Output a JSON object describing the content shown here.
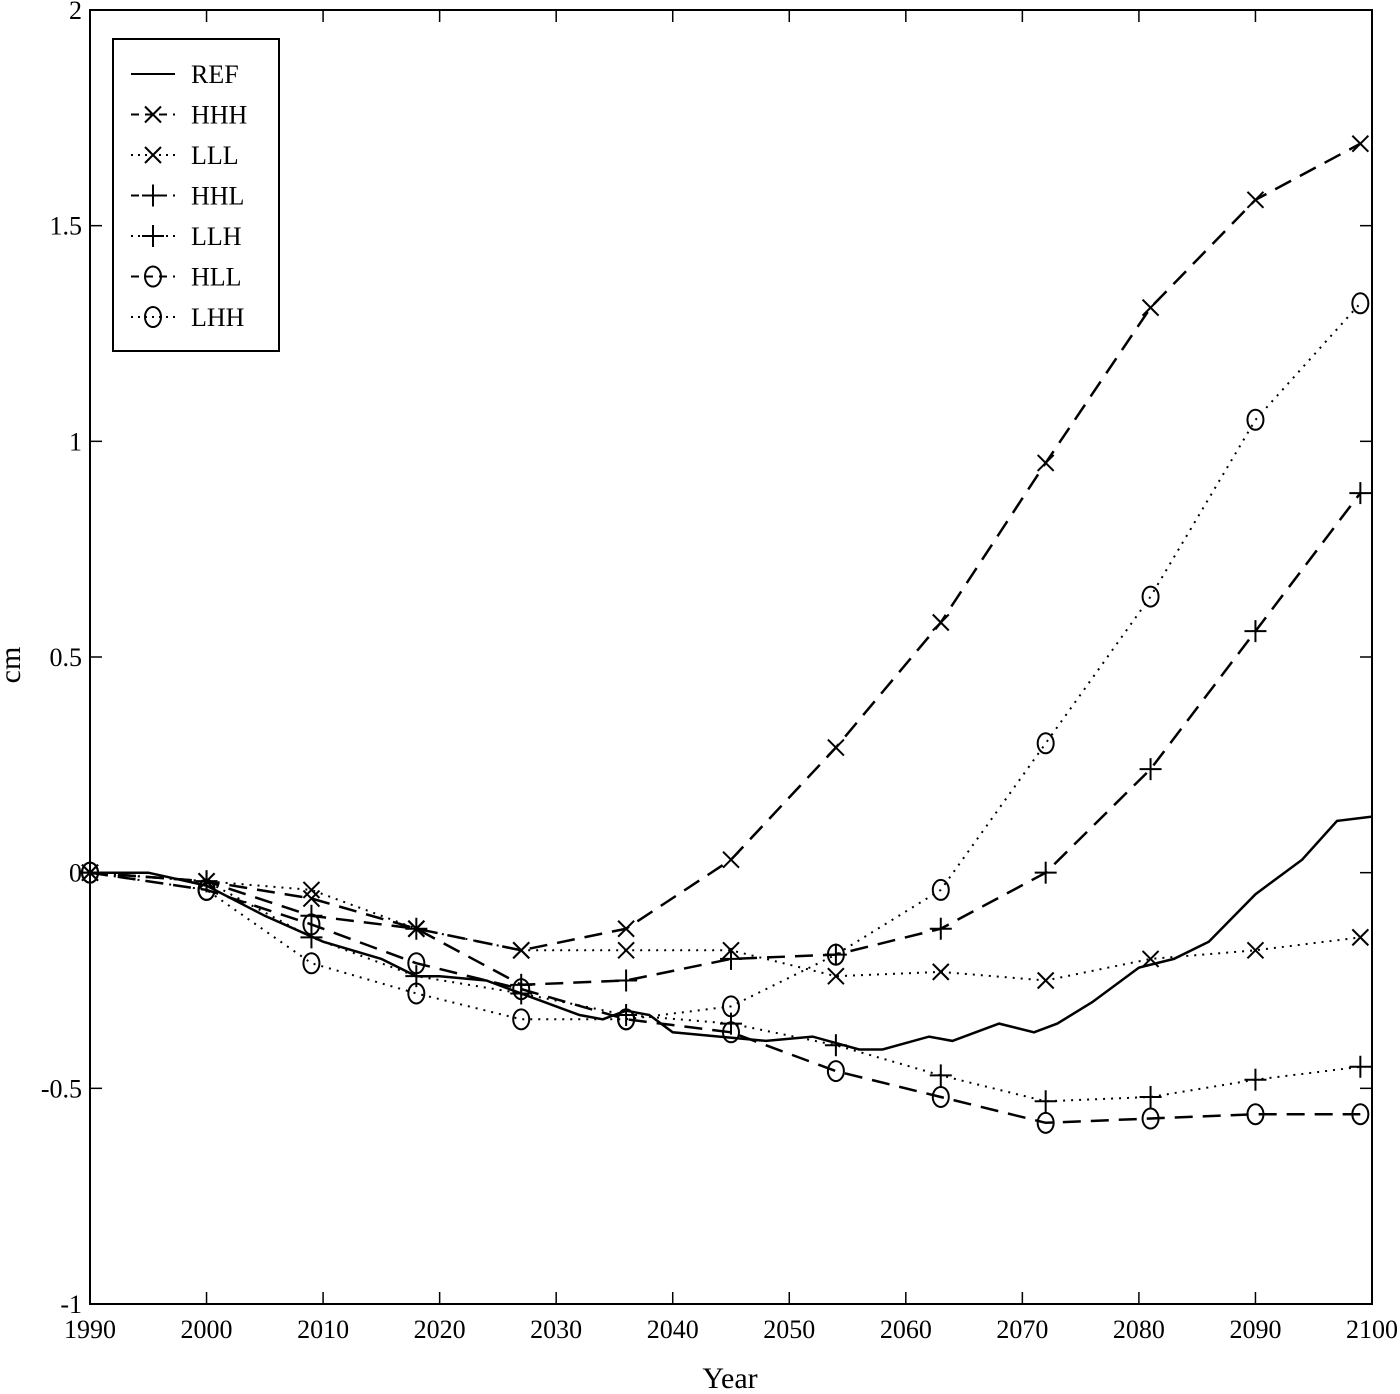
{
  "chart_data": {
    "type": "line",
    "title": "",
    "xlabel": "Year",
    "ylabel": "cm",
    "xlim": [
      1990,
      2100
    ],
    "ylim": [
      -1,
      2
    ],
    "xticks": [
      1990,
      2000,
      2010,
      2020,
      2030,
      2040,
      2050,
      2060,
      2070,
      2080,
      2090,
      2100
    ],
    "yticks": [
      -1,
      -0.5,
      0,
      0.5,
      1,
      1.5,
      2
    ],
    "ytick_labels": [
      "-1",
      "-0.5",
      "0",
      "0.5",
      "1",
      "1.5",
      "2"
    ],
    "grid": false,
    "legend_position": "top-left",
    "series": [
      {
        "name": "REF",
        "style": "solid",
        "marker": "none",
        "x": [
          1990,
          1995,
          2000,
          2005,
          2010,
          2015,
          2018,
          2020,
          2024,
          2028,
          2032,
          2034,
          2036,
          2038,
          2040,
          2044,
          2048,
          2052,
          2056,
          2058,
          2062,
          2064,
          2068,
          2071,
          2073,
          2076,
          2080,
          2083,
          2086,
          2090,
          2094,
          2097,
          2100
        ],
        "y": [
          0,
          0,
          -0.03,
          -0.1,
          -0.16,
          -0.2,
          -0.24,
          -0.24,
          -0.25,
          -0.29,
          -0.33,
          -0.34,
          -0.32,
          -0.33,
          -0.37,
          -0.38,
          -0.39,
          -0.38,
          -0.41,
          -0.41,
          -0.38,
          -0.39,
          -0.35,
          -0.37,
          -0.35,
          -0.3,
          -0.22,
          -0.2,
          -0.16,
          -0.05,
          0.03,
          0.12,
          0.13
        ]
      },
      {
        "name": "HHH",
        "style": "dashed",
        "marker": "x",
        "x": [
          1990,
          2000,
          2009,
          2018,
          2027,
          2036,
          2045,
          2054,
          2063,
          2072,
          2081,
          2090,
          2099
        ],
        "y": [
          0,
          -0.02,
          -0.06,
          -0.13,
          -0.18,
          -0.13,
          0.03,
          0.29,
          0.58,
          0.95,
          1.31,
          1.56,
          1.69
        ]
      },
      {
        "name": "LLL",
        "style": "dotted",
        "marker": "x",
        "x": [
          1990,
          2000,
          2009,
          2018,
          2027,
          2036,
          2045,
          2054,
          2063,
          2072,
          2081,
          2090,
          2099
        ],
        "y": [
          0,
          -0.02,
          -0.04,
          -0.13,
          -0.18,
          -0.18,
          -0.18,
          -0.24,
          -0.23,
          -0.25,
          -0.2,
          -0.18,
          -0.15
        ]
      },
      {
        "name": "HHL",
        "style": "dashed",
        "marker": "+",
        "x": [
          1990,
          2000,
          2009,
          2018,
          2027,
          2036,
          2045,
          2054,
          2063,
          2072,
          2081,
          2090,
          2099
        ],
        "y": [
          0,
          -0.02,
          -0.1,
          -0.13,
          -0.26,
          -0.25,
          -0.2,
          -0.19,
          -0.13,
          0,
          0.24,
          0.56,
          0.88
        ]
      },
      {
        "name": "LLH",
        "style": "dotted",
        "marker": "+",
        "x": [
          1990,
          2000,
          2009,
          2018,
          2027,
          2036,
          2045,
          2054,
          2063,
          2072,
          2081,
          2090,
          2099
        ],
        "y": [
          0,
          -0.02,
          -0.15,
          -0.24,
          -0.28,
          -0.33,
          -0.35,
          -0.4,
          -0.47,
          -0.53,
          -0.52,
          -0.48,
          -0.45
        ]
      },
      {
        "name": "HLL",
        "style": "dashed",
        "marker": "o",
        "x": [
          1990,
          2000,
          2009,
          2018,
          2027,
          2036,
          2045,
          2054,
          2063,
          2072,
          2081,
          2090,
          2099
        ],
        "y": [
          0,
          -0.04,
          -0.12,
          -0.21,
          -0.27,
          -0.34,
          -0.37,
          -0.46,
          -0.52,
          -0.58,
          -0.57,
          -0.56,
          -0.56
        ]
      },
      {
        "name": "LHH",
        "style": "dotted",
        "marker": "o",
        "x": [
          1990,
          2000,
          2009,
          2018,
          2027,
          2036,
          2045,
          2054,
          2063,
          2072,
          2081,
          2090,
          2099
        ],
        "y": [
          0,
          -0.04,
          -0.21,
          -0.28,
          -0.34,
          -0.34,
          -0.31,
          -0.19,
          -0.04,
          0.3,
          0.64,
          1.05,
          1.32
        ]
      }
    ]
  }
}
